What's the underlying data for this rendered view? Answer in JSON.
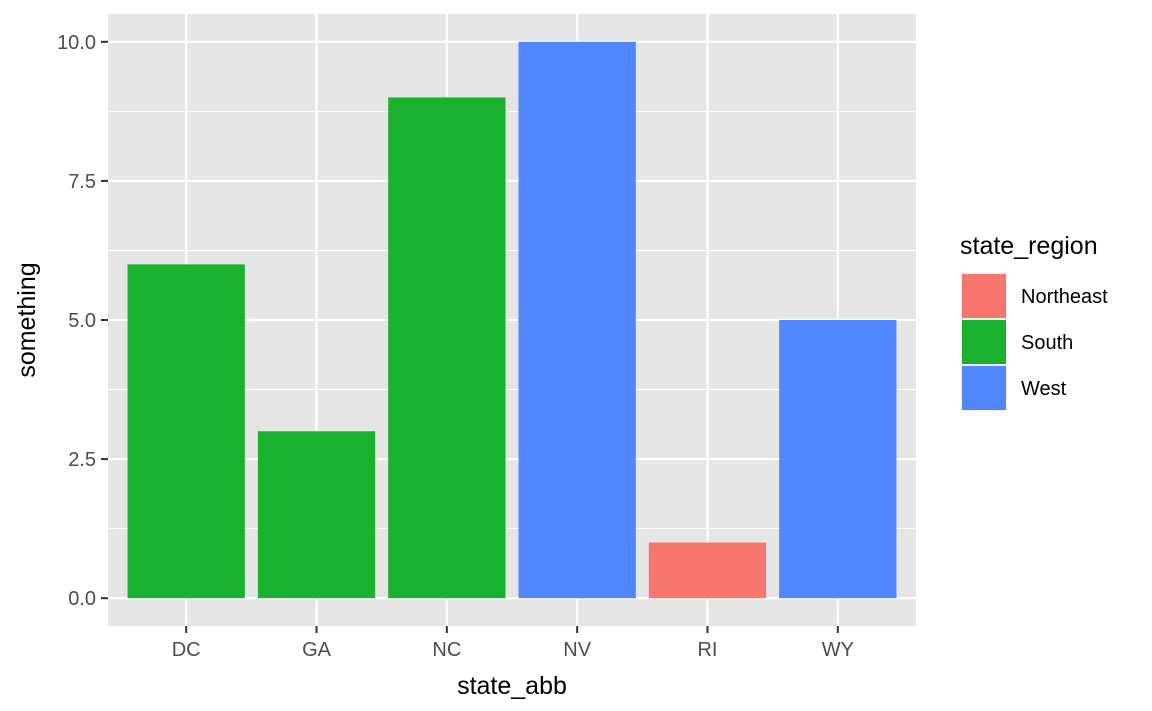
{
  "chart_data": {
    "type": "bar",
    "categories": [
      "DC",
      "GA",
      "NC",
      "NV",
      "RI",
      "WY"
    ],
    "values": [
      6,
      3,
      9,
      10,
      1,
      5
    ],
    "groups": [
      "South",
      "South",
      "South",
      "West",
      "Northeast",
      "West"
    ],
    "xlabel": "state_abb",
    "ylabel": "something",
    "ylim": [
      -0.5,
      10.5
    ],
    "yticks": [
      0.0,
      2.5,
      5.0,
      7.5,
      10.0
    ],
    "ytick_labels": [
      "0.0",
      "2.5",
      "5.0",
      "7.5",
      "10.0"
    ],
    "grid": true,
    "legend": {
      "title": "state_region",
      "placement": "right",
      "entries": [
        {
          "label": "Northeast",
          "color": "#F8766D"
        },
        {
          "label": "South",
          "color": "#1AB12F"
        },
        {
          "label": "West",
          "color": "#5087FF"
        }
      ]
    },
    "colors": {
      "panel": "#E5E5E5",
      "grid": "#FFFFFF",
      "tick": "#333333"
    }
  }
}
